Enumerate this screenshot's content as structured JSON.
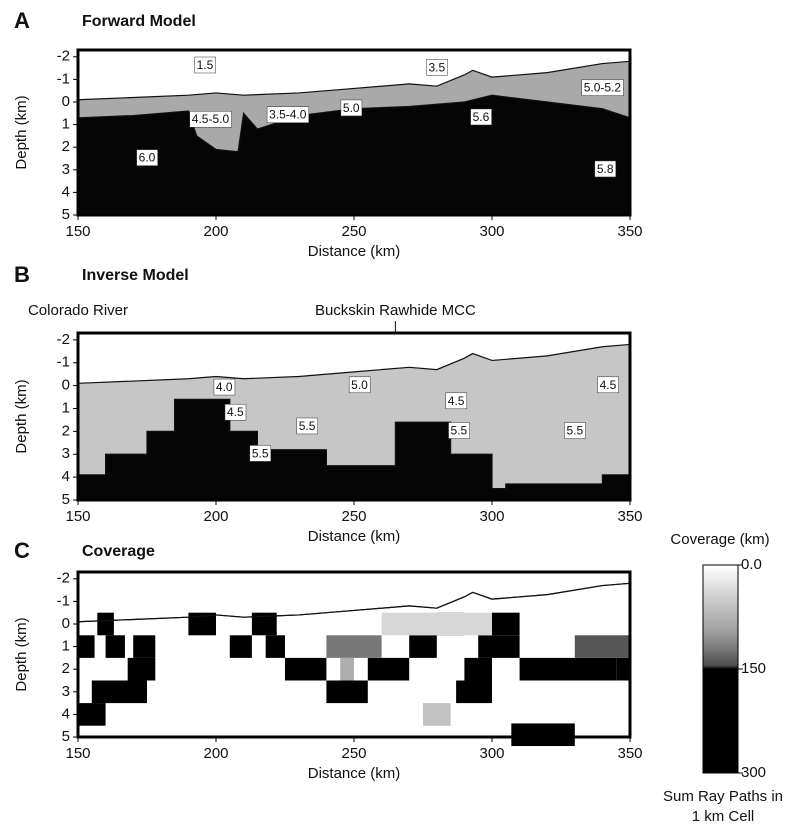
{
  "chart_data": [
    {
      "type": "section",
      "panel": "A",
      "title": "Forward Model",
      "xlabel": "Distance (km)",
      "ylabel": "Depth (km)",
      "xlim": [
        150,
        350
      ],
      "ylim": [
        5,
        -2.3
      ],
      "xticks": [
        150,
        200,
        250,
        300,
        350
      ],
      "yticks": [
        -2,
        -1,
        0,
        1,
        2,
        3,
        4,
        5
      ],
      "layers": [
        {
          "color": "#a9a9a9",
          "x": [
            150,
            170,
            190,
            200,
            210,
            230,
            250,
            270,
            280,
            290,
            293,
            300,
            320,
            340,
            350
          ],
          "values": [
            -0.1,
            -0.2,
            -0.3,
            -0.4,
            -0.3,
            -0.4,
            -0.6,
            -0.8,
            -0.7,
            -1.2,
            -1.4,
            -1.1,
            -1.3,
            -1.7,
            -1.8
          ]
        },
        {
          "color": "#050505",
          "x": [
            150,
            170,
            190,
            193,
            200,
            208,
            210,
            215,
            230,
            250,
            270,
            290,
            300,
            320,
            340,
            350
          ],
          "values": [
            0.7,
            0.6,
            0.4,
            1.5,
            2.1,
            2.2,
            0.5,
            1.2,
            0.6,
            0.3,
            0.2,
            0.0,
            -0.3,
            0.0,
            0.3,
            0.7
          ]
        }
      ],
      "annotations": [
        {
          "text": "1.5",
          "x": 196,
          "y": -1.6
        },
        {
          "text": "3.5",
          "x": 280,
          "y": -1.5
        },
        {
          "text": "4.5-5.0",
          "x": 198,
          "y": 0.8
        },
        {
          "text": "3.5-4.0",
          "x": 226,
          "y": 0.6
        },
        {
          "text": "5.0",
          "x": 249,
          "y": 0.3
        },
        {
          "text": "5.6",
          "x": 296,
          "y": 0.7
        },
        {
          "text": "5.0-5.2",
          "x": 340,
          "y": -0.6
        },
        {
          "text": "6.0",
          "x": 175,
          "y": 2.5
        },
        {
          "text": "5.8",
          "x": 341,
          "y": 3.0
        }
      ]
    },
    {
      "type": "section",
      "panel": "B",
      "title": "Inverse Model",
      "xlabel": "Distance (km)",
      "ylabel": "Depth (km)",
      "xlim": [
        150,
        350
      ],
      "ylim": [
        5,
        -2.3
      ],
      "xticks": [
        150,
        200,
        250,
        300,
        350
      ],
      "yticks": [
        -2,
        -1,
        0,
        1,
        2,
        3,
        4,
        5
      ],
      "site_labels": [
        {
          "text": "Colorado River",
          "x": 150
        },
        {
          "text": "Buckskin Rawhide MCC",
          "x": 265
        }
      ],
      "layers": [
        {
          "color": "#c6c6c6",
          "x": [
            150,
            170,
            190,
            200,
            210,
            230,
            250,
            270,
            280,
            290,
            293,
            300,
            320,
            340,
            350
          ],
          "values": [
            -0.1,
            -0.2,
            -0.3,
            -0.4,
            -0.3,
            -0.4,
            -0.6,
            -0.8,
            -0.7,
            -1.2,
            -1.4,
            -1.1,
            -1.3,
            -1.7,
            -1.8
          ]
        },
        {
          "color": "#050505",
          "x": [
            150,
            160,
            160,
            175,
            175,
            185,
            185,
            205,
            205,
            215,
            215,
            240,
            240,
            265,
            265,
            285,
            285,
            300,
            300,
            305,
            305,
            340,
            340,
            350
          ],
          "values": [
            3.9,
            3.9,
            3.0,
            3.0,
            2.0,
            2.0,
            0.6,
            0.6,
            2.0,
            2.0,
            2.8,
            2.8,
            3.5,
            3.5,
            1.6,
            1.6,
            3.0,
            3.0,
            4.5,
            4.5,
            4.3,
            4.3,
            3.9,
            3.9
          ]
        }
      ],
      "annotations": [
        {
          "text": "4.0",
          "x": 203,
          "y": 0.1
        },
        {
          "text": "5.0",
          "x": 252,
          "y": 0.0
        },
        {
          "text": "4.5",
          "x": 287,
          "y": 0.7
        },
        {
          "text": "4.5",
          "x": 342,
          "y": 0.0
        },
        {
          "text": "4.5",
          "x": 207,
          "y": 1.2
        },
        {
          "text": "5.5",
          "x": 233,
          "y": 1.8
        },
        {
          "text": "5.5",
          "x": 288,
          "y": 2.0
        },
        {
          "text": "5.5",
          "x": 330,
          "y": 2.0
        },
        {
          "text": "5.5",
          "x": 216,
          "y": 3.0
        }
      ]
    },
    {
      "type": "section",
      "panel": "C",
      "title": "Coverage",
      "xlabel": "Distance (km)",
      "ylabel": "Depth (km)",
      "xlim": [
        150,
        350
      ],
      "ylim": [
        5,
        -2.3
      ],
      "xticks": [
        150,
        200,
        250,
        300,
        350
      ],
      "yticks": [
        -2,
        -1,
        0,
        1,
        2,
        3,
        4,
        5
      ],
      "layers": [
        {
          "color": "#ffffff",
          "x": [
            150,
            170,
            190,
            200,
            210,
            230,
            250,
            270,
            280,
            290,
            293,
            300,
            320,
            340,
            350
          ],
          "values": [
            -0.1,
            -0.2,
            -0.3,
            -0.4,
            -0.3,
            -0.4,
            -0.6,
            -0.8,
            -0.7,
            -1.2,
            -1.4,
            -1.1,
            -1.3,
            -1.7,
            -1.8
          ]
        }
      ],
      "cells": [
        [
          150,
          160,
          3.5,
          300
        ],
        [
          150,
          156,
          0.5,
          300
        ],
        [
          157,
          163,
          -0.5,
          300
        ],
        [
          160,
          167,
          0.5,
          300
        ],
        [
          170,
          178,
          0.5,
          300
        ],
        [
          168,
          178,
          1.5,
          300
        ],
        [
          155,
          175,
          2.5,
          300
        ],
        [
          190,
          200,
          -0.5,
          300
        ],
        [
          205,
          213,
          0.5,
          300
        ],
        [
          213,
          222,
          -0.5,
          300
        ],
        [
          218,
          225,
          0.5,
          300
        ],
        [
          225,
          240,
          1.5,
          300
        ],
        [
          240,
          255,
          2.5,
          300
        ],
        [
          255,
          270,
          1.5,
          300
        ],
        [
          270,
          280,
          0.5,
          300
        ],
        [
          280,
          290,
          -0.5,
          300
        ],
        [
          300,
          310,
          -0.5,
          300
        ],
        [
          290,
          300,
          1.5,
          300
        ],
        [
          295,
          310,
          0.5,
          300
        ],
        [
          310,
          345,
          1.5,
          230
        ],
        [
          345,
          350,
          1.5,
          300
        ],
        [
          287,
          300,
          2.5,
          300
        ],
        [
          307,
          330,
          4.4,
          170
        ],
        [
          240,
          260,
          0.5,
          120
        ],
        [
          330,
          350,
          0.5,
          140
        ],
        [
          275,
          285,
          3.5,
          60
        ],
        [
          245,
          250,
          1.5,
          80
        ],
        [
          260,
          300,
          -0.5,
          40
        ]
      ]
    },
    {
      "type": "colorbar",
      "title": "Coverage (km)",
      "label_lines": [
        "Sum Ray Paths in",
        "1 km Cell"
      ],
      "zlim": [
        0,
        300
      ],
      "ticks": [
        {
          "value": 0,
          "label": "0.0"
        },
        150,
        300
      ],
      "stops": [
        [
          0,
          "#ffffff"
        ],
        [
          100,
          "#9a9a9a"
        ],
        [
          145,
          "#4e4e4e"
        ],
        [
          150,
          "#000000"
        ],
        [
          300,
          "#000000"
        ]
      ]
    }
  ]
}
